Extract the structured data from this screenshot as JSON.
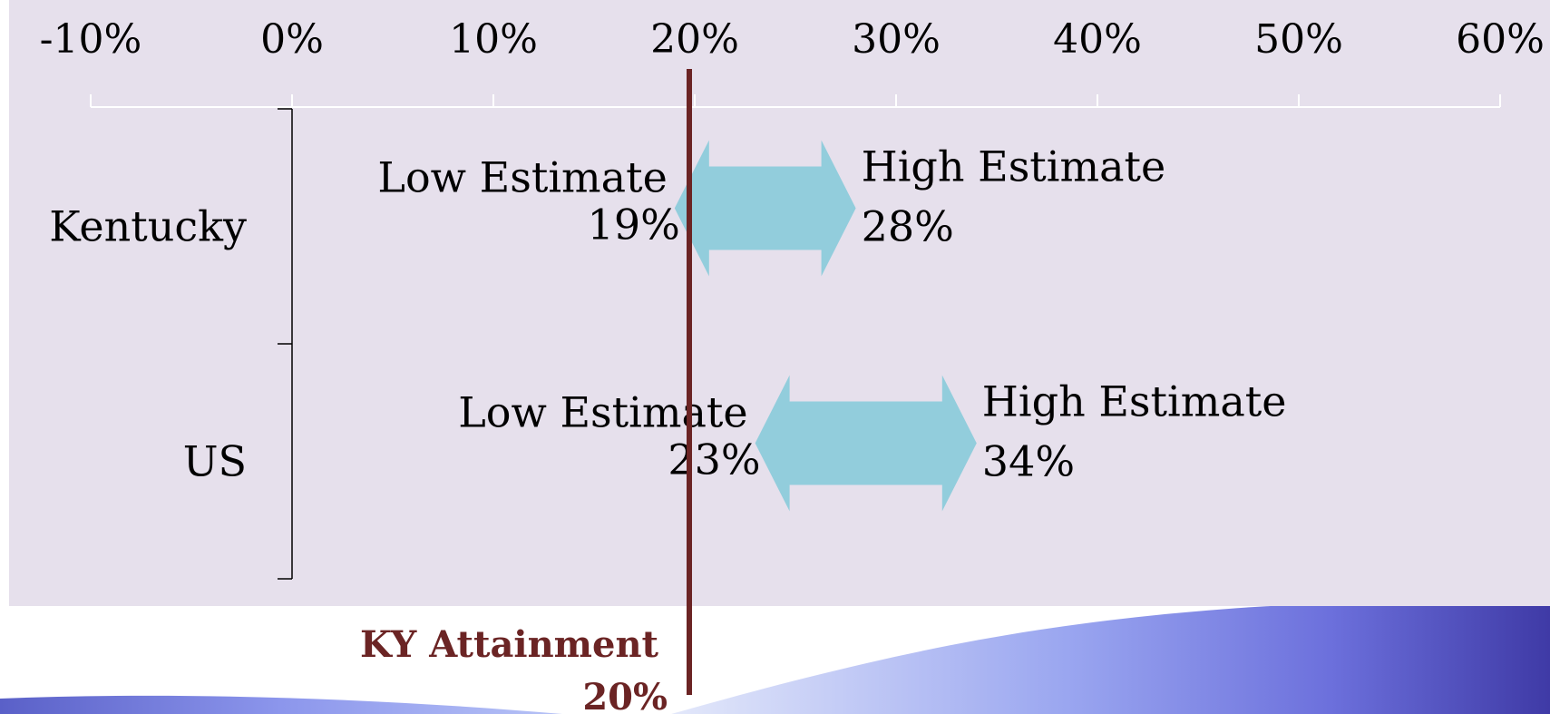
{
  "chart_data": {
    "type": "range",
    "title": "",
    "xlabel": "",
    "ylabel": "",
    "x_axis": {
      "min": -10,
      "max": 60,
      "step": 10,
      "tick_labels": [
        "-10%",
        "0%",
        "10%",
        "20%",
        "30%",
        "40%",
        "50%",
        "60%"
      ],
      "position": "top"
    },
    "categories": [
      "Kentucky",
      "US"
    ],
    "ranges": [
      {
        "category": "Kentucky",
        "low": 19,
        "high": 28,
        "low_label": "Low Estimate",
        "low_value_label": "19%",
        "high_label": "High Estimate",
        "high_value_label": "28%"
      },
      {
        "category": "US",
        "low": 23,
        "high": 34,
        "low_label": "Low Estimate",
        "low_value_label": "23%",
        "high_label": "High Estimate",
        "high_value_label": "34%"
      }
    ],
    "reference_line": {
      "value": 20,
      "label": "KY Attainment",
      "value_label": "20%",
      "color": "#6b2424"
    },
    "grid": false,
    "colors": {
      "plot_background": "#e6e0ec",
      "arrow_fill": "#92cddc",
      "axis_line": "#ffffff",
      "banner_light": "#c8d4f4",
      "banner_dark": "#3a3aa0"
    }
  }
}
